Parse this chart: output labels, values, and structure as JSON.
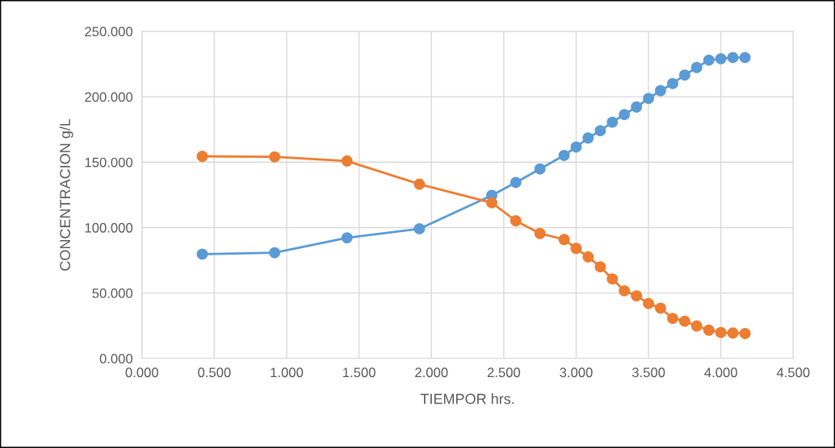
{
  "chart_data": {
    "type": "line",
    "xlabel": "TIEMPOR hrs.",
    "ylabel": "CONCENTRACION g/L",
    "x": [
      0.417,
      0.917,
      1.417,
      1.917,
      2.417,
      2.583,
      2.75,
      2.917,
      3.0,
      3.083,
      3.167,
      3.25,
      3.333,
      3.417,
      3.5,
      3.583,
      3.667,
      3.75,
      3.833,
      3.917,
      4.0,
      4.083,
      4.167
    ],
    "series": [
      {
        "color": "#5b9bd5",
        "values": [
          79.7,
          80.8,
          92.2,
          99.1,
          124.6,
          134.5,
          144.8,
          155.2,
          161.6,
          168.5,
          174.1,
          180.6,
          186.4,
          192.2,
          198.7,
          204.7,
          210.1,
          216.6,
          222.4,
          228.0,
          229.1,
          230.0,
          230.0
        ]
      },
      {
        "color": "#ed7d31",
        "values": [
          154.5,
          154.1,
          150.9,
          133.2,
          119.0,
          105.2,
          95.5,
          90.9,
          84.1,
          77.6,
          70.0,
          60.8,
          51.7,
          47.8,
          42.0,
          38.4,
          30.6,
          28.4,
          24.8,
          21.6,
          19.8,
          19.4,
          19.0
        ]
      }
    ],
    "xlim": [
      0,
      4.5
    ],
    "xticks": [
      {
        "value": 0,
        "label": "0.000"
      },
      {
        "value": 0.5,
        "label": "0.500"
      },
      {
        "value": 1,
        "label": "1.000"
      },
      {
        "value": 1.5,
        "label": "1.500"
      },
      {
        "value": 2,
        "label": "2.000"
      },
      {
        "value": 2.5,
        "label": "2.500"
      },
      {
        "value": 3,
        "label": "3.000"
      },
      {
        "value": 3.5,
        "label": "3.500"
      },
      {
        "value": 4,
        "label": "4.000"
      },
      {
        "value": 4.5,
        "label": "4.500"
      }
    ],
    "ylim": [
      0,
      250
    ],
    "yticks": [
      {
        "value": 0,
        "label": "0.000"
      },
      {
        "value": 50,
        "label": "50.000"
      },
      {
        "value": 100,
        "label": "100.000"
      },
      {
        "value": 150,
        "label": "150.000"
      },
      {
        "value": 200,
        "label": "200.000"
      },
      {
        "value": 250,
        "label": "250.000"
      }
    ],
    "grid": true,
    "marker": "circle",
    "line_style": "solid"
  }
}
